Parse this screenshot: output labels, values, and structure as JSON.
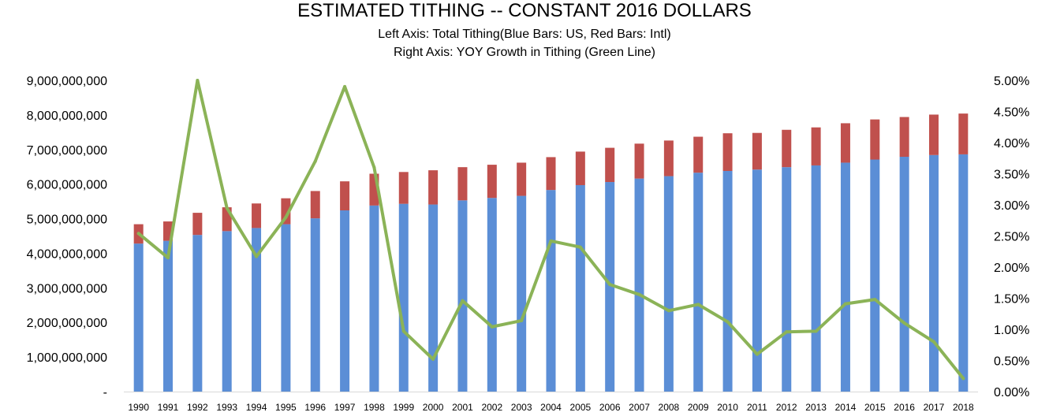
{
  "chart_data": {
    "type": "bar",
    "title": "ESTIMATED TITHING -- CONSTANT 2016 DOLLARS",
    "subtitle_lines": [
      "Left Axis: Total Tithing(Blue Bars: US, Red Bars: Intl)",
      "Right Axis: YOY Growth in Tithing (Green Line)"
    ],
    "stacked": true,
    "categories": [
      "1990",
      "1991",
      "1992",
      "1993",
      "1994",
      "1995",
      "1996",
      "1997",
      "1998",
      "1999",
      "2000",
      "2001",
      "2002",
      "2003",
      "2004",
      "2005",
      "2006",
      "2007",
      "2008",
      "2009",
      "2010",
      "2011",
      "2012",
      "2013",
      "2014",
      "2015",
      "2016",
      "2017",
      "2018"
    ],
    "series": [
      {
        "type": "bar",
        "axis": "left",
        "color": "#5B8ED6",
        "values": [
          4280000000,
          4360000000,
          4530000000,
          4640000000,
          4730000000,
          4840000000,
          5010000000,
          5240000000,
          5380000000,
          5430000000,
          5410000000,
          5530000000,
          5600000000,
          5660000000,
          5830000000,
          5970000000,
          6060000000,
          6160000000,
          6230000000,
          6330000000,
          6380000000,
          6420000000,
          6490000000,
          6540000000,
          6620000000,
          6710000000,
          6790000000,
          6840000000,
          6860000000
        ]
      },
      {
        "type": "bar",
        "axis": "left",
        "color": "#C0504D",
        "values": [
          560000000,
          560000000,
          640000000,
          690000000,
          710000000,
          750000000,
          790000000,
          840000000,
          920000000,
          920000000,
          990000000,
          960000000,
          960000000,
          960000000,
          950000000,
          970000000,
          990000000,
          1010000000,
          1030000000,
          1040000000,
          1090000000,
          1060000000,
          1080000000,
          1100000000,
          1140000000,
          1160000000,
          1150000000,
          1170000000,
          1180000000
        ]
      },
      {
        "type": "line",
        "axis": "right",
        "color": "#8BB357",
        "values": [
          0.0254,
          0.0215,
          0.05,
          0.0295,
          0.0217,
          0.028,
          0.037,
          0.049,
          0.036,
          0.0097,
          0.0052,
          0.0146,
          0.0104,
          0.0114,
          0.0242,
          0.0232,
          0.0172,
          0.0156,
          0.013,
          0.014,
          0.0112,
          0.006,
          0.0096,
          0.0097,
          0.0141,
          0.0148,
          0.011,
          0.008,
          0.0021
        ]
      }
    ],
    "y_left": {
      "min": 0,
      "max": 9000000000,
      "tick_labels": [
        "-",
        "1,000,000,000",
        "2,000,000,000",
        "3,000,000,000",
        "4,000,000,000",
        "5,000,000,000",
        "6,000,000,000",
        "7,000,000,000",
        "8,000,000,000",
        "9,000,000,000"
      ]
    },
    "y_right": {
      "min": 0,
      "max": 0.05,
      "tick_labels": [
        "0.00%",
        "0.50%",
        "1.00%",
        "1.50%",
        "2.00%",
        "2.50%",
        "3.00%",
        "3.50%",
        "4.00%",
        "4.50%",
        "5.00%"
      ]
    },
    "grid": false,
    "legend": "none"
  }
}
